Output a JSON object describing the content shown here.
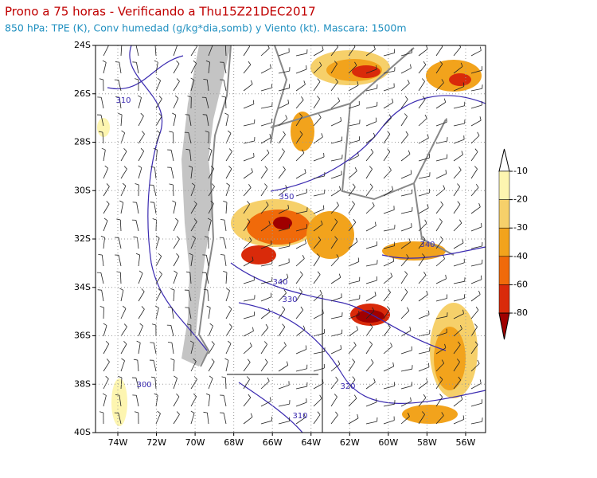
{
  "title": "Prono a 75 horas - Verificando a Thu15Z21DEC2017",
  "subtitle": "850 hPa: TPE (K), Conv humedad (g/kg*dia,somb) y Viento (kt). Mascara: 1500m",
  "map": {
    "lat_labels": [
      "24S",
      "26S",
      "28S",
      "30S",
      "32S",
      "34S",
      "36S",
      "38S",
      "40S"
    ],
    "lon_labels": [
      "74W",
      "72W",
      "70W",
      "68W",
      "66W",
      "64W",
      "62W",
      "60W",
      "58W",
      "56W"
    ],
    "contour_labels": [
      "310",
      "350",
      "340",
      "340",
      "330",
      "300",
      "320",
      "310"
    ]
  },
  "colorbar": {
    "labels": [
      "-10",
      "-20",
      "-30",
      "-40",
      "-60",
      "-80"
    ]
  }
}
